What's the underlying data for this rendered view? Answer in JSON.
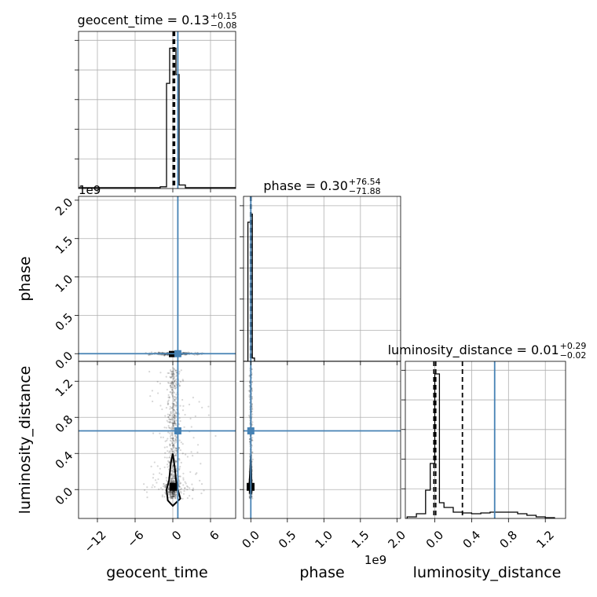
{
  "chart_data": {
    "type": "scatter",
    "subtype": "corner-plot",
    "parameters": [
      "geocent_time",
      "phase",
      "luminosity_distance"
    ],
    "axis_labels": {
      "geocent_time": "geocent_time",
      "phase": "phase",
      "luminosity_distance": "luminosity_distance"
    },
    "titles": [
      {
        "param": "geocent_time",
        "prefix": "geocent_time = ",
        "median": "0.13",
        "upper": "+0.15",
        "lower": "−0.08"
      },
      {
        "param": "phase",
        "prefix": "phase = ",
        "median": "0.30",
        "upper": "+76.54",
        "lower": "−71.88"
      },
      {
        "param": "luminosity_distance",
        "prefix": "luminosity_distance = ",
        "median": "0.01",
        "upper": "+0.29",
        "lower": "−0.02"
      }
    ],
    "ranges": {
      "geocent_time": [
        -15,
        10
      ],
      "phase": [
        -0.1,
        2.05
      ],
      "luminosity_distance": [
        -0.32,
        1.42
      ]
    },
    "ticks": {
      "geocent_time": [
        -12,
        -6,
        0,
        6
      ],
      "phase": [
        0.0,
        0.5,
        1.0,
        1.5,
        2.0
      ],
      "luminosity_distance": [
        0.0,
        0.4,
        0.8,
        1.2
      ]
    },
    "tick_labels": {
      "geocent_time": [
        "−12",
        "−6",
        "0",
        "6"
      ],
      "phase": [
        "0.0",
        "0.5",
        "1.0",
        "1.5",
        "2.0"
      ],
      "luminosity_distance": [
        "0.0",
        "0.4",
        "0.8",
        "1.2"
      ]
    },
    "offset_text": {
      "phase": "1e9"
    },
    "truths": {
      "geocent_time": 0.8,
      "phase": 0.0,
      "luminosity_distance": 0.65
    },
    "quantiles": {
      "geocent_time": [
        0.05,
        0.13,
        0.28
      ],
      "phase": [
        -0.003,
        0.0,
        0.003
      ],
      "luminosity_distance": [
        -0.01,
        0.01,
        0.3
      ]
    },
    "hist_geocent_time": {
      "edges": [
        -15,
        -2,
        -1,
        -0.5,
        0,
        0.5,
        1,
        2,
        10
      ],
      "counts": [
        0.005,
        0.01,
        0.6,
        0.8,
        0.8,
        0.65,
        0.02,
        0.005
      ]
    },
    "hist_phase": {
      "edges": [
        -0.1,
        -0.04,
        0.0,
        0.02,
        0.05,
        2.05
      ],
      "counts": [
        0.0,
        0.85,
        0.9,
        0.02,
        0.0
      ]
    },
    "hist_luminosity_distance": {
      "edges": [
        -0.3,
        -0.2,
        -0.1,
        -0.05,
        0.0,
        0.05,
        0.1,
        0.2,
        0.3,
        0.4,
        0.5,
        0.6,
        0.7,
        0.8,
        0.9,
        1.0,
        1.1,
        1.2,
        1.3
      ],
      "counts": [
        0.01,
        0.03,
        0.18,
        0.35,
        0.92,
        0.1,
        0.07,
        0.04,
        0.035,
        0.03,
        0.035,
        0.04,
        0.04,
        0.04,
        0.03,
        0.02,
        0.01,
        0.005
      ],
      "ylim": [
        0,
        1.0
      ]
    },
    "contours": {
      "geocent_time_vs_luminosity_distance": {
        "center": [
          0.1,
          0.03
        ],
        "outline": [
          [
            0.0,
            0.4
          ],
          [
            -0.3,
            0.3
          ],
          [
            -0.6,
            0.1
          ],
          [
            -1.0,
            0.0
          ],
          [
            -0.8,
            -0.12
          ],
          [
            0.0,
            -0.18
          ],
          [
            1.2,
            -0.1
          ],
          [
            0.6,
            0.05
          ],
          [
            0.3,
            0.25
          ],
          [
            0.0,
            0.4
          ]
        ]
      },
      "phase_vs_luminosity_distance": {
        "center": [
          -0.003,
          0.03
        ],
        "outline": [
          [
            0.0,
            0.38
          ],
          [
            -0.01,
            0.2
          ],
          [
            -0.02,
            0.05
          ],
          [
            -0.012,
            -0.04
          ],
          [
            0.008,
            -0.04
          ],
          [
            0.01,
            0.05
          ],
          [
            0.006,
            0.2
          ],
          [
            0.0,
            0.38
          ]
        ]
      }
    }
  }
}
